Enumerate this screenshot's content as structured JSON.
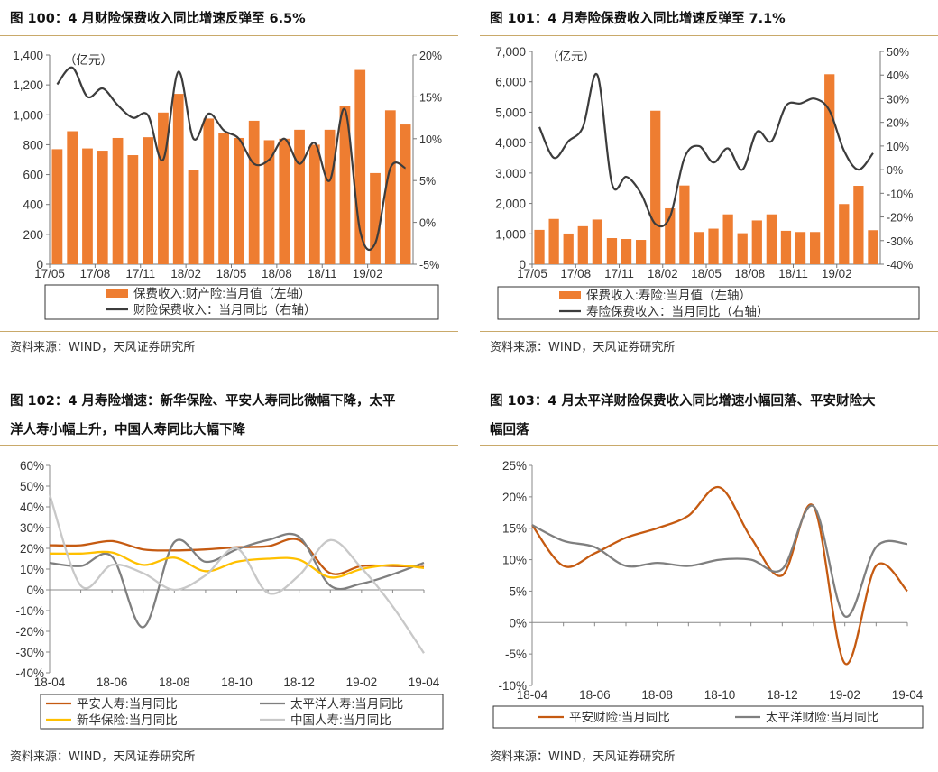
{
  "colors": {
    "orange": "#ee7d31",
    "dark": "#3c3c3c",
    "yellow": "#ffc000",
    "gray": "#7f7f7f",
    "lightgray": "#c8c8c8",
    "rule": "#c9a96a"
  },
  "source_text": "资料来源：WIND，天风证券研究所",
  "chart_data": [
    {
      "type": "bar",
      "title": "图 100：4 月财险保费收入同比增速反弹至 6.5%",
      "unit_label": "（亿元）",
      "y_left": {
        "min": 0,
        "max": 1400,
        "ticks": [
          "0",
          "200",
          "400",
          "600",
          "800",
          "1,000",
          "1,200",
          "1,400"
        ]
      },
      "y_right": {
        "min": -5,
        "max": 20,
        "ticks": [
          "-5%",
          "0%",
          "5%",
          "10%",
          "15%",
          "20%"
        ]
      },
      "x_ticks": [
        {
          "i": 0,
          "label": "17/05"
        },
        {
          "i": 3,
          "label": "17/08"
        },
        {
          "i": 6,
          "label": "17/11"
        },
        {
          "i": 9,
          "label": "18/02"
        },
        {
          "i": 12,
          "label": "18/05"
        },
        {
          "i": 15,
          "label": "18/08"
        },
        {
          "i": 18,
          "label": "18/11"
        },
        {
          "i": 21,
          "label": "19/02"
        }
      ],
      "categories": [
        "17/05",
        "17/06",
        "17/07",
        "17/08",
        "17/09",
        "17/10",
        "17/11",
        "17/12",
        "18/01",
        "18/02",
        "18/03",
        "18/04",
        "18/05",
        "18/06",
        "18/07",
        "18/08",
        "18/09",
        "18/10",
        "18/11",
        "18/12",
        "19/01",
        "19/02",
        "19/03",
        "19/04"
      ],
      "bars": {
        "name": "保费收入:财产险:当月值（左轴）",
        "values": [
          770,
          890,
          775,
          760,
          845,
          730,
          850,
          1015,
          1140,
          630,
          975,
          875,
          845,
          960,
          830,
          840,
          900,
          800,
          900,
          1060,
          1300,
          610,
          1030,
          935
        ]
      },
      "line": {
        "name": "财险保费收入：当月同比（右轴）",
        "values": [
          16.5,
          18.5,
          15.0,
          16.0,
          14.0,
          12.5,
          12.8,
          7.5,
          18.0,
          10.0,
          13.0,
          11.0,
          10.0,
          7.0,
          7.5,
          10.0,
          7.0,
          9.5,
          5.0,
          13.5,
          -1.0,
          -2.5,
          6.5,
          6.5
        ]
      }
    },
    {
      "type": "bar",
      "title": "图 101：4 月寿险保费收入同比增速反弹至 7.1%",
      "unit_label": "（亿元）",
      "y_left": {
        "min": 0,
        "max": 7000,
        "ticks": [
          "0",
          "1,000",
          "2,000",
          "3,000",
          "4,000",
          "5,000",
          "6,000",
          "7,000"
        ]
      },
      "y_right": {
        "min": -40,
        "max": 50,
        "ticks": [
          "-40%",
          "-30%",
          "-20%",
          "-10%",
          "0%",
          "10%",
          "20%",
          "30%",
          "40%",
          "50%"
        ]
      },
      "x_ticks": [
        {
          "i": 0,
          "label": "17/05"
        },
        {
          "i": 3,
          "label": "17/08"
        },
        {
          "i": 6,
          "label": "17/11"
        },
        {
          "i": 9,
          "label": "18/02"
        },
        {
          "i": 12,
          "label": "18/05"
        },
        {
          "i": 15,
          "label": "18/08"
        },
        {
          "i": 18,
          "label": "18/11"
        },
        {
          "i": 21,
          "label": "19/02"
        }
      ],
      "categories": [
        "17/05",
        "17/06",
        "17/07",
        "17/08",
        "17/09",
        "17/10",
        "17/11",
        "17/12",
        "18/01",
        "18/02",
        "18/03",
        "18/04",
        "18/05",
        "18/06",
        "18/07",
        "18/08",
        "18/09",
        "18/10",
        "18/11",
        "18/12",
        "19/01",
        "19/02",
        "19/03",
        "19/04"
      ],
      "bars": {
        "name": "保费收入:寿险:当月值（左轴）",
        "values": [
          1130,
          1490,
          1010,
          1250,
          1470,
          860,
          830,
          800,
          5050,
          1840,
          2590,
          1060,
          1170,
          1640,
          1020,
          1440,
          1640,
          1100,
          1060,
          1060,
          6250,
          1980,
          2580,
          1120
        ]
      },
      "line": {
        "name": "寿险保费收入：当月同比（右轴）",
        "values": [
          18,
          5,
          12,
          18,
          40,
          -6,
          -3,
          -10,
          -23,
          -20,
          5,
          10,
          3,
          9,
          0,
          16,
          12,
          27,
          28,
          30,
          25,
          8,
          0,
          7
        ]
      }
    },
    {
      "type": "line",
      "title": "图 102：4 月寿险增速：新华保险、平安人寿同比微幅下降，太平洋人寿小幅上升，中国人寿同比大幅下降",
      "title_lines": [
        "图 102：4 月寿险增速：新华保险、平安人寿同比微幅下降，太平",
        "洋人寿小幅上升，中国人寿同比大幅下降"
      ],
      "y": {
        "min": -40,
        "max": 60,
        "ticks": [
          "-40%",
          "-30%",
          "-20%",
          "-10%",
          "0%",
          "10%",
          "20%",
          "30%",
          "40%",
          "50%",
          "60%"
        ]
      },
      "categories": [
        "18-04",
        "18-05",
        "18-06",
        "18-07",
        "18-08",
        "18-09",
        "18-10",
        "18-11",
        "18-12",
        "19-01",
        "19-02",
        "19-03",
        "19-04"
      ],
      "x_labels": [
        {
          "i": 0,
          "label": "18-04"
        },
        {
          "i": 2,
          "label": "18-06"
        },
        {
          "i": 4,
          "label": "18-08"
        },
        {
          "i": 6,
          "label": "18-10"
        },
        {
          "i": 8,
          "label": "18-12"
        },
        {
          "i": 10,
          "label": "19-02"
        },
        {
          "i": 12,
          "label": "19-04"
        }
      ],
      "series": [
        {
          "name": "平安人寿:当月同比",
          "color": "#c55a11",
          "values": [
            21.5,
            21.5,
            23.5,
            19.5,
            19.0,
            19.5,
            20.5,
            21.0,
            24.0,
            8.0,
            11.5,
            11.5,
            11.0
          ]
        },
        {
          "name": "太平洋人寿:当月同比",
          "color": "#7f7f7f",
          "values": [
            13.0,
            11.5,
            16.0,
            -18.0,
            23.0,
            13.5,
            19.5,
            24.0,
            25.5,
            2.0,
            3.0,
            7.5,
            13.0
          ]
        },
        {
          "name": "新华保险:当月同比",
          "color": "#ffc000",
          "values": [
            17.5,
            17.5,
            18.0,
            12.0,
            15.5,
            9.0,
            13.5,
            15.0,
            14.5,
            6.0,
            10.0,
            12.0,
            10.5
          ]
        },
        {
          "name": "中国人寿:当月同比",
          "color": "#c8c8c8",
          "values": [
            46.0,
            2.0,
            12.0,
            8.0,
            0.0,
            7.0,
            20.0,
            -1.5,
            7.0,
            24.0,
            10.5,
            -8.0,
            -30.5
          ]
        }
      ]
    },
    {
      "type": "line",
      "title": "图 103：4 月太平洋财险保费收入同比增速小幅回落、平安财险大幅回落",
      "title_lines": [
        "图 103：4 月太平洋财险保费收入同比增速小幅回落、平安财险大",
        "幅回落"
      ],
      "y": {
        "min": -10,
        "max": 25,
        "ticks": [
          "-10%",
          "-5%",
          "0%",
          "5%",
          "10%",
          "15%",
          "20%",
          "25%"
        ]
      },
      "categories": [
        "18-04",
        "18-05",
        "18-06",
        "18-07",
        "18-08",
        "18-09",
        "18-10",
        "18-11",
        "18-12",
        "19-01",
        "19-02",
        "19-03",
        "19-04"
      ],
      "x_labels": [
        {
          "i": 0,
          "label": "18-04"
        },
        {
          "i": 2,
          "label": "18-06"
        },
        {
          "i": 4,
          "label": "18-08"
        },
        {
          "i": 6,
          "label": "18-10"
        },
        {
          "i": 8,
          "label": "18-12"
        },
        {
          "i": 10,
          "label": "19-02"
        },
        {
          "i": 12,
          "label": "19-04"
        }
      ],
      "series": [
        {
          "name": "平安财险:当月同比",
          "color": "#c55a11",
          "values": [
            15.5,
            9.0,
            11.0,
            13.5,
            15.0,
            17.0,
            21.5,
            13.5,
            7.5,
            18.5,
            -6.5,
            9.0,
            5.0
          ]
        },
        {
          "name": "太平洋财险:当月同比",
          "color": "#7f7f7f",
          "values": [
            15.5,
            13.0,
            12.0,
            9.0,
            9.5,
            9.0,
            10.0,
            10.0,
            8.5,
            18.5,
            1.0,
            12.0,
            12.5
          ]
        }
      ]
    }
  ]
}
